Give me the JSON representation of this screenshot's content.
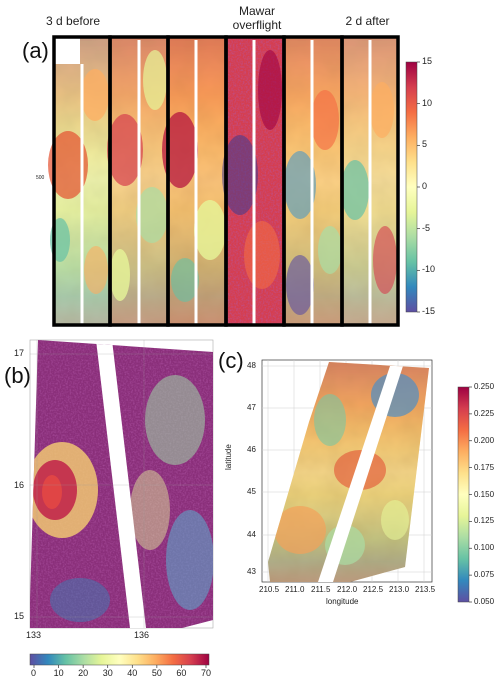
{
  "panel_a": {
    "label": "(a)",
    "headers": {
      "left": "3 d before",
      "middle": "Mawar\noverflight",
      "right": "2 d after"
    },
    "small_tick": "500",
    "colorbar": {
      "ticks": [
        "15",
        "10",
        "5",
        "0",
        "-5",
        "-10",
        "-15"
      ],
      "min": -15,
      "max": 15
    }
  },
  "panel_b": {
    "label": "(b)",
    "y_ticks": [
      "17",
      "16",
      "15"
    ],
    "x_ticks": [
      "133",
      "136"
    ],
    "colorbar": {
      "ticks": [
        "0",
        "10",
        "20",
        "30",
        "40",
        "50",
        "60",
        "70"
      ],
      "min": 0,
      "max": 70
    }
  },
  "panel_c": {
    "label": "(c)",
    "ylabel": "latitude",
    "xlabel": "longitude",
    "y_ticks": [
      "48",
      "47",
      "46",
      "45",
      "44",
      "43"
    ],
    "x_ticks": [
      "210.5",
      "211.0",
      "211.5",
      "212.0",
      "212.5",
      "213.0",
      "213.5"
    ],
    "colorbar": {
      "ticks": [
        "0.250",
        "0.225",
        "0.200",
        "0.175",
        "0.150",
        "0.125",
        "0.100",
        "0.075",
        "0.050"
      ],
      "min": 0.05,
      "max": 0.25
    }
  },
  "colors": {
    "spectral": [
      "#5e4fa2",
      "#3288bd",
      "#66c2a5",
      "#abdda4",
      "#e6f598",
      "#ffffbf",
      "#fee08b",
      "#fdae61",
      "#f46d43",
      "#d53e4f",
      "#9e0142"
    ]
  }
}
